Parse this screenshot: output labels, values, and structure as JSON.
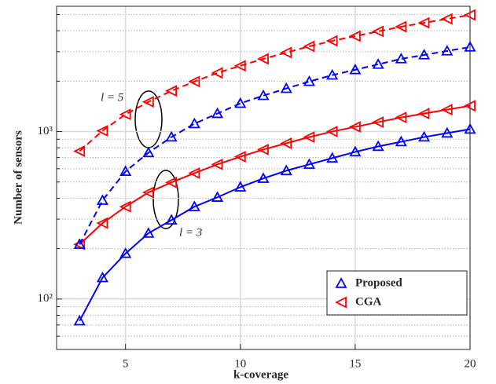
{
  "chart_data": {
    "type": "line",
    "x": [
      3,
      4,
      5,
      6,
      7,
      8,
      9,
      10,
      11,
      12,
      13,
      14,
      15,
      16,
      17,
      18,
      19,
      20
    ],
    "xlabel": "k-coverage",
    "ylabel": "Number of sensors",
    "xlim": [
      2,
      20
    ],
    "xticks": [
      5,
      10,
      15,
      20
    ],
    "ylim": [
      50,
      5600
    ],
    "log_y": true,
    "yticks": [
      {
        "value": 100,
        "label": "10²"
      },
      {
        "value": 1000,
        "label": "10³"
      }
    ],
    "yminor": [
      60,
      70,
      80,
      90,
      200,
      300,
      400,
      500,
      600,
      700,
      800,
      900,
      2000,
      3000,
      4000,
      5000
    ],
    "grid": true,
    "legend": "lower right",
    "series": [
      {
        "name": "Proposed",
        "color": "#0000ff",
        "marker": "triangle-up",
        "dashed": false,
        "values": [
          74,
          134,
          187,
          247,
          296,
          356,
          405,
          466,
          525,
          584,
          637,
          694,
          756,
          815,
          869,
          927,
          979,
          1033
        ]
      },
      {
        "name": "CGA",
        "color": "#ff0000",
        "marker": "triangle-left",
        "dashed": false,
        "values": [
          212,
          284,
          356,
          433,
          497,
          565,
          637,
          708,
          781,
          851,
          927,
          1000,
          1067,
          1138,
          1214,
          1281,
          1352,
          1426
        ]
      },
      {
        "name": "Proposed",
        "color": "#0000ff",
        "marker": "triangle-up",
        "dashed": true,
        "values": [
          212,
          388,
          578,
          748,
          927,
          1114,
          1281,
          1473,
          1640,
          1808,
          1990,
          2173,
          2339,
          2520,
          2717,
          2868,
          3028,
          3196
        ]
      },
      {
        "name": "CGA",
        "color": "#ff0000",
        "marker": "triangle-left",
        "dashed": true,
        "values": [
          764,
          1011,
          1267,
          1505,
          1750,
          1990,
          2240,
          2470,
          2717,
          2963,
          3229,
          3480,
          3715,
          3965,
          4230,
          4460,
          4707,
          4970
        ]
      }
    ],
    "annotations": [
      "l = 5",
      "l = 3"
    ]
  }
}
